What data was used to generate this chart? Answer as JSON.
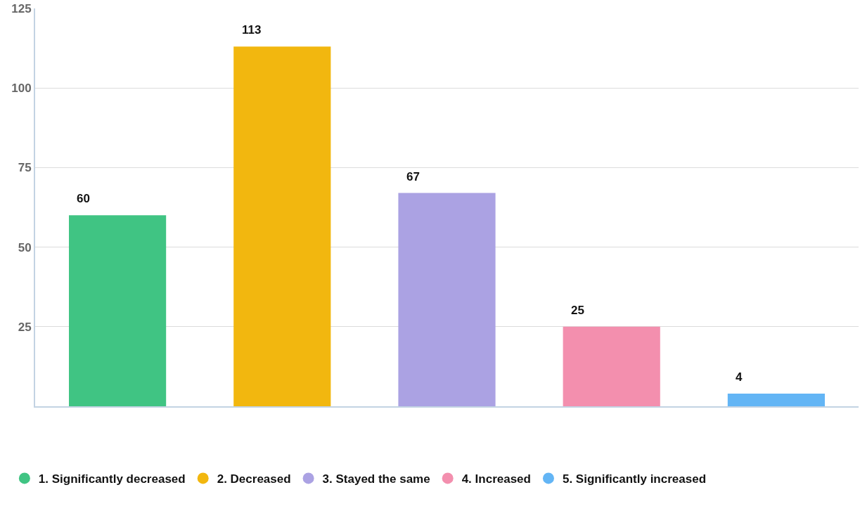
{
  "chart_data": {
    "type": "bar",
    "categories": [
      null
    ],
    "series": [
      {
        "name": "1. Significantly decreased",
        "color": "#40c483",
        "values": [
          60
        ]
      },
      {
        "name": "2. Decreased",
        "color": "#f2b70f",
        "values": [
          113
        ]
      },
      {
        "name": "3. Stayed the same",
        "color": "#aba2e3",
        "values": [
          67
        ]
      },
      {
        "name": "4. Increased",
        "color": "#f38fae",
        "values": [
          25
        ]
      },
      {
        "name": "5. Significantly increased",
        "color": "#63b5f5",
        "values": [
          4
        ]
      }
    ],
    "ylim": [
      0,
      125
    ],
    "yticks": [
      25,
      50,
      75,
      100,
      125
    ],
    "grid": "y",
    "legend": "bottom",
    "tick_labels": "y",
    "data_labels": true
  }
}
